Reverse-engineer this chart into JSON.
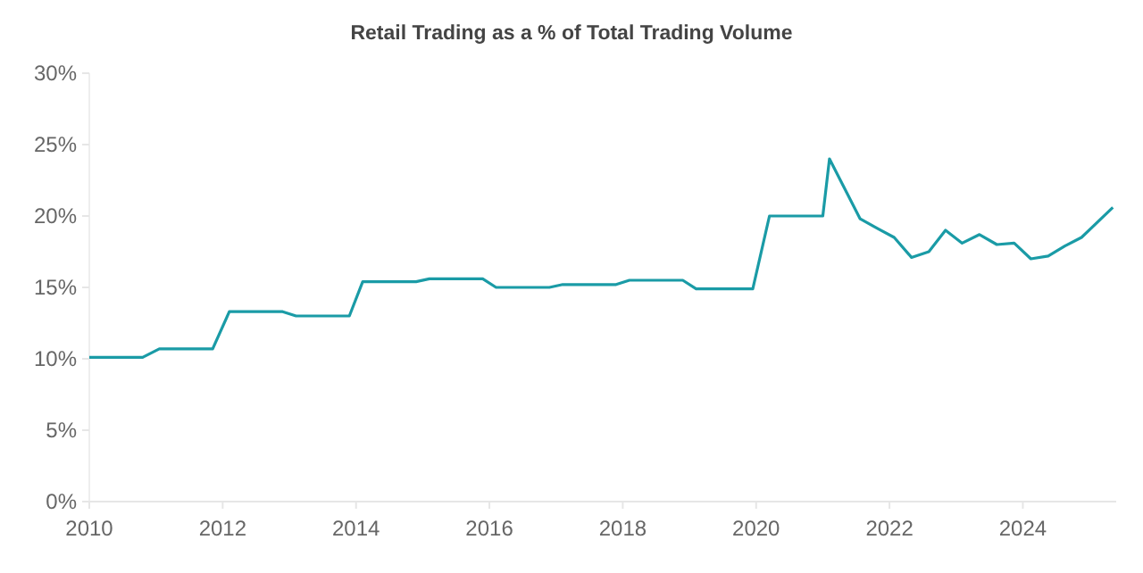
{
  "chart_data": {
    "type": "line",
    "title": "Retail Trading as a % of Total Trading Volume",
    "x": [
      2010,
      2010.8,
      2011.05,
      2011.85,
      2012.1,
      2012.9,
      2013.1,
      2013.9,
      2014.1,
      2014.9,
      2015.1,
      2015.9,
      2016.1,
      2016.9,
      2017.1,
      2017.9,
      2018.1,
      2018.9,
      2019.1,
      2019.95,
      2020.2,
      2021.0,
      2021.1,
      2021.56,
      2021.83,
      2022.07,
      2022.33,
      2022.59,
      2022.84,
      2023.09,
      2023.35,
      2023.61,
      2023.87,
      2024.12,
      2024.38,
      2024.63,
      2024.88,
      2025.35
    ],
    "series": [
      {
        "color": "#1a9ba6",
        "values": [
          10.1,
          10.1,
          10.7,
          10.7,
          13.3,
          13.3,
          13.0,
          13.0,
          15.4,
          15.4,
          15.6,
          15.6,
          15.0,
          15.0,
          15.2,
          15.2,
          15.5,
          15.5,
          14.9,
          14.9,
          20.0,
          20.0,
          24.0,
          19.8,
          19.1,
          18.5,
          17.1,
          17.5,
          19.0,
          18.1,
          18.7,
          18.0,
          18.1,
          17.0,
          17.2,
          17.9,
          18.5,
          20.6
        ]
      }
    ],
    "xlim": [
      2010,
      2025.4
    ],
    "xticks": [
      2010,
      2012,
      2014,
      2016,
      2018,
      2020,
      2022,
      2024
    ],
    "ylim": [
      0,
      30
    ],
    "yticks": [
      {
        "value": 0,
        "label": "0%"
      },
      {
        "value": 5,
        "label": "5%"
      },
      {
        "value": 10,
        "label": "10%"
      },
      {
        "value": 15,
        "label": "15%"
      },
      {
        "value": 20,
        "label": "20%"
      },
      {
        "value": 25,
        "label": "25%"
      },
      {
        "value": 30,
        "label": "30%"
      }
    ],
    "grid": false,
    "marker": "none",
    "line_style": "solid"
  }
}
